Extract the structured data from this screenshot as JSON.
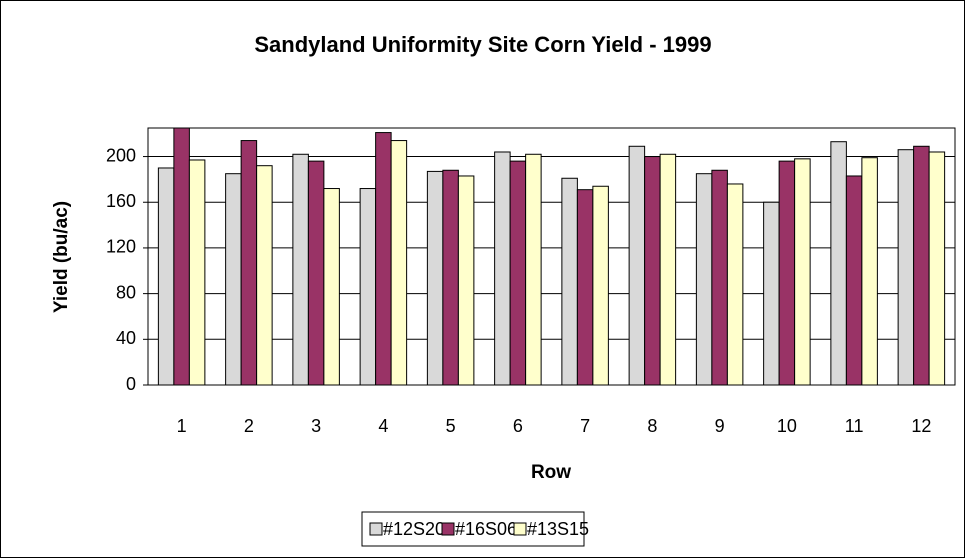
{
  "chart_data": {
    "type": "bar",
    "title": "Sandyland Uniformity Site Corn Yield - 1999",
    "x_label": "Row",
    "y_label": "Yield (bu/ac)",
    "categories": [
      "1",
      "2",
      "3",
      "4",
      "5",
      "6",
      "7",
      "8",
      "9",
      "10",
      "11",
      "12"
    ],
    "series": [
      {
        "name": "#12S20",
        "color": "#d9d9d9",
        "values": [
          190,
          185,
          202,
          172,
          187,
          204,
          181,
          209,
          185,
          160,
          213,
          206
        ]
      },
      {
        "name": "#16S06",
        "color": "#993366",
        "values": [
          225,
          214,
          196,
          221,
          188,
          196,
          171,
          200,
          188,
          196,
          183,
          209
        ]
      },
      {
        "name": "#13S15",
        "color": "#ffffcc",
        "values": [
          197,
          192,
          172,
          214,
          183,
          202,
          174,
          202,
          176,
          198,
          199,
          204
        ]
      }
    ],
    "ylim": [
      0,
      225
    ],
    "yticks": [
      0,
      40,
      80,
      120,
      160,
      200
    ],
    "grid": true,
    "legend": "bottom"
  }
}
